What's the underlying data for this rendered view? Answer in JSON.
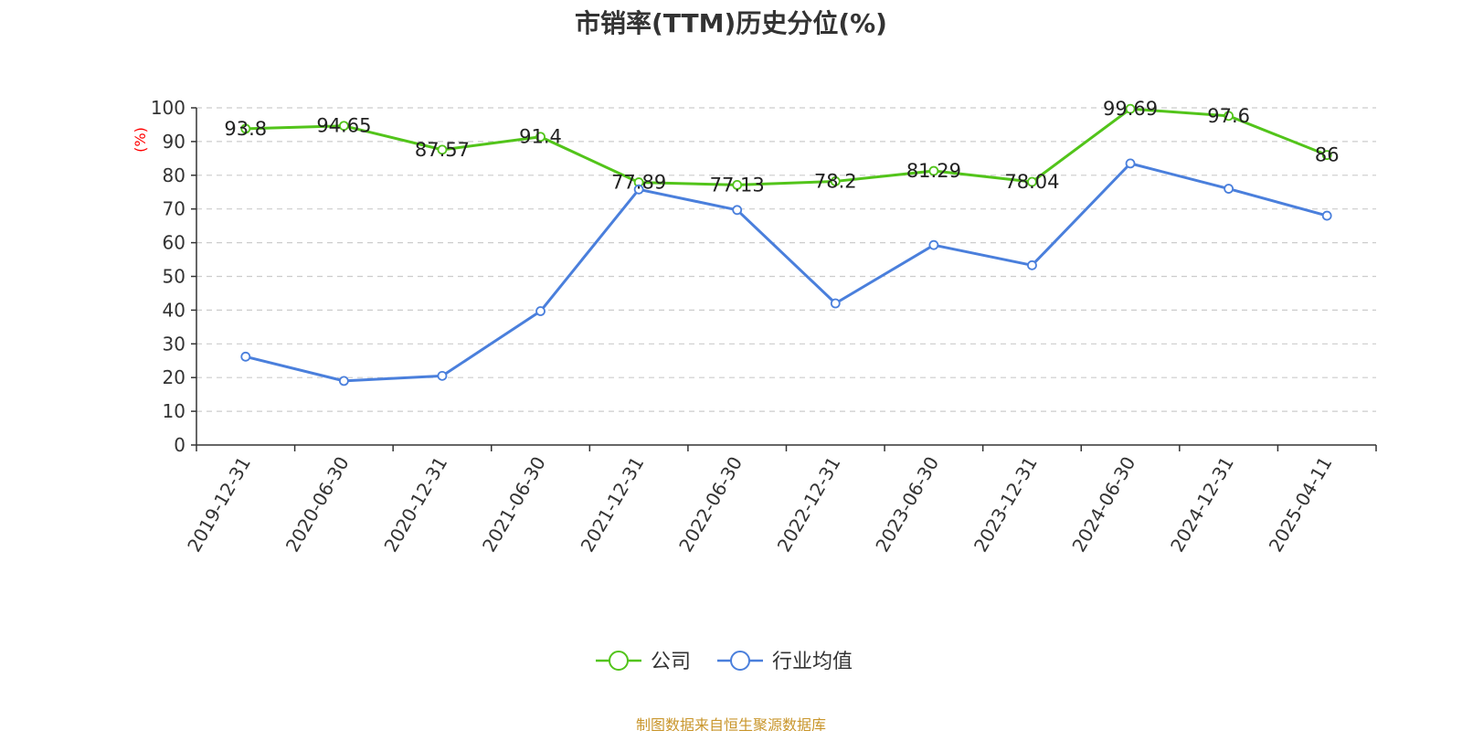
{
  "source_text": "制图数据来自恒生聚源数据库",
  "chart_data": {
    "type": "line",
    "title": "市销率(TTM)历史分位(%)",
    "ylabel": "(%)",
    "xlabel": "",
    "ylim": [
      0,
      100
    ],
    "yticks": [
      0,
      10,
      20,
      30,
      40,
      50,
      60,
      70,
      80,
      90,
      100
    ],
    "grid": true,
    "legend_position": "bottom-center",
    "categories": [
      "2019-12-31",
      "2020-06-30",
      "2020-12-31",
      "2021-06-30",
      "2021-12-31",
      "2022-06-30",
      "2022-12-31",
      "2023-06-30",
      "2023-12-31",
      "2024-06-30",
      "2024-12-31",
      "2025-04-11"
    ],
    "series": [
      {
        "name": "公司",
        "color": "#52c41a",
        "show_labels": true,
        "values": [
          93.8,
          94.65,
          87.57,
          91.4,
          77.89,
          77.13,
          78.2,
          81.29,
          78.04,
          99.69,
          97.6,
          86
        ]
      },
      {
        "name": "行业均值",
        "color": "#4a7fdc",
        "show_labels": false,
        "values": [
          26.2,
          19.0,
          20.5,
          39.7,
          75.8,
          69.7,
          42.0,
          59.3,
          53.3,
          83.5,
          76.0,
          68.0
        ]
      }
    ]
  }
}
